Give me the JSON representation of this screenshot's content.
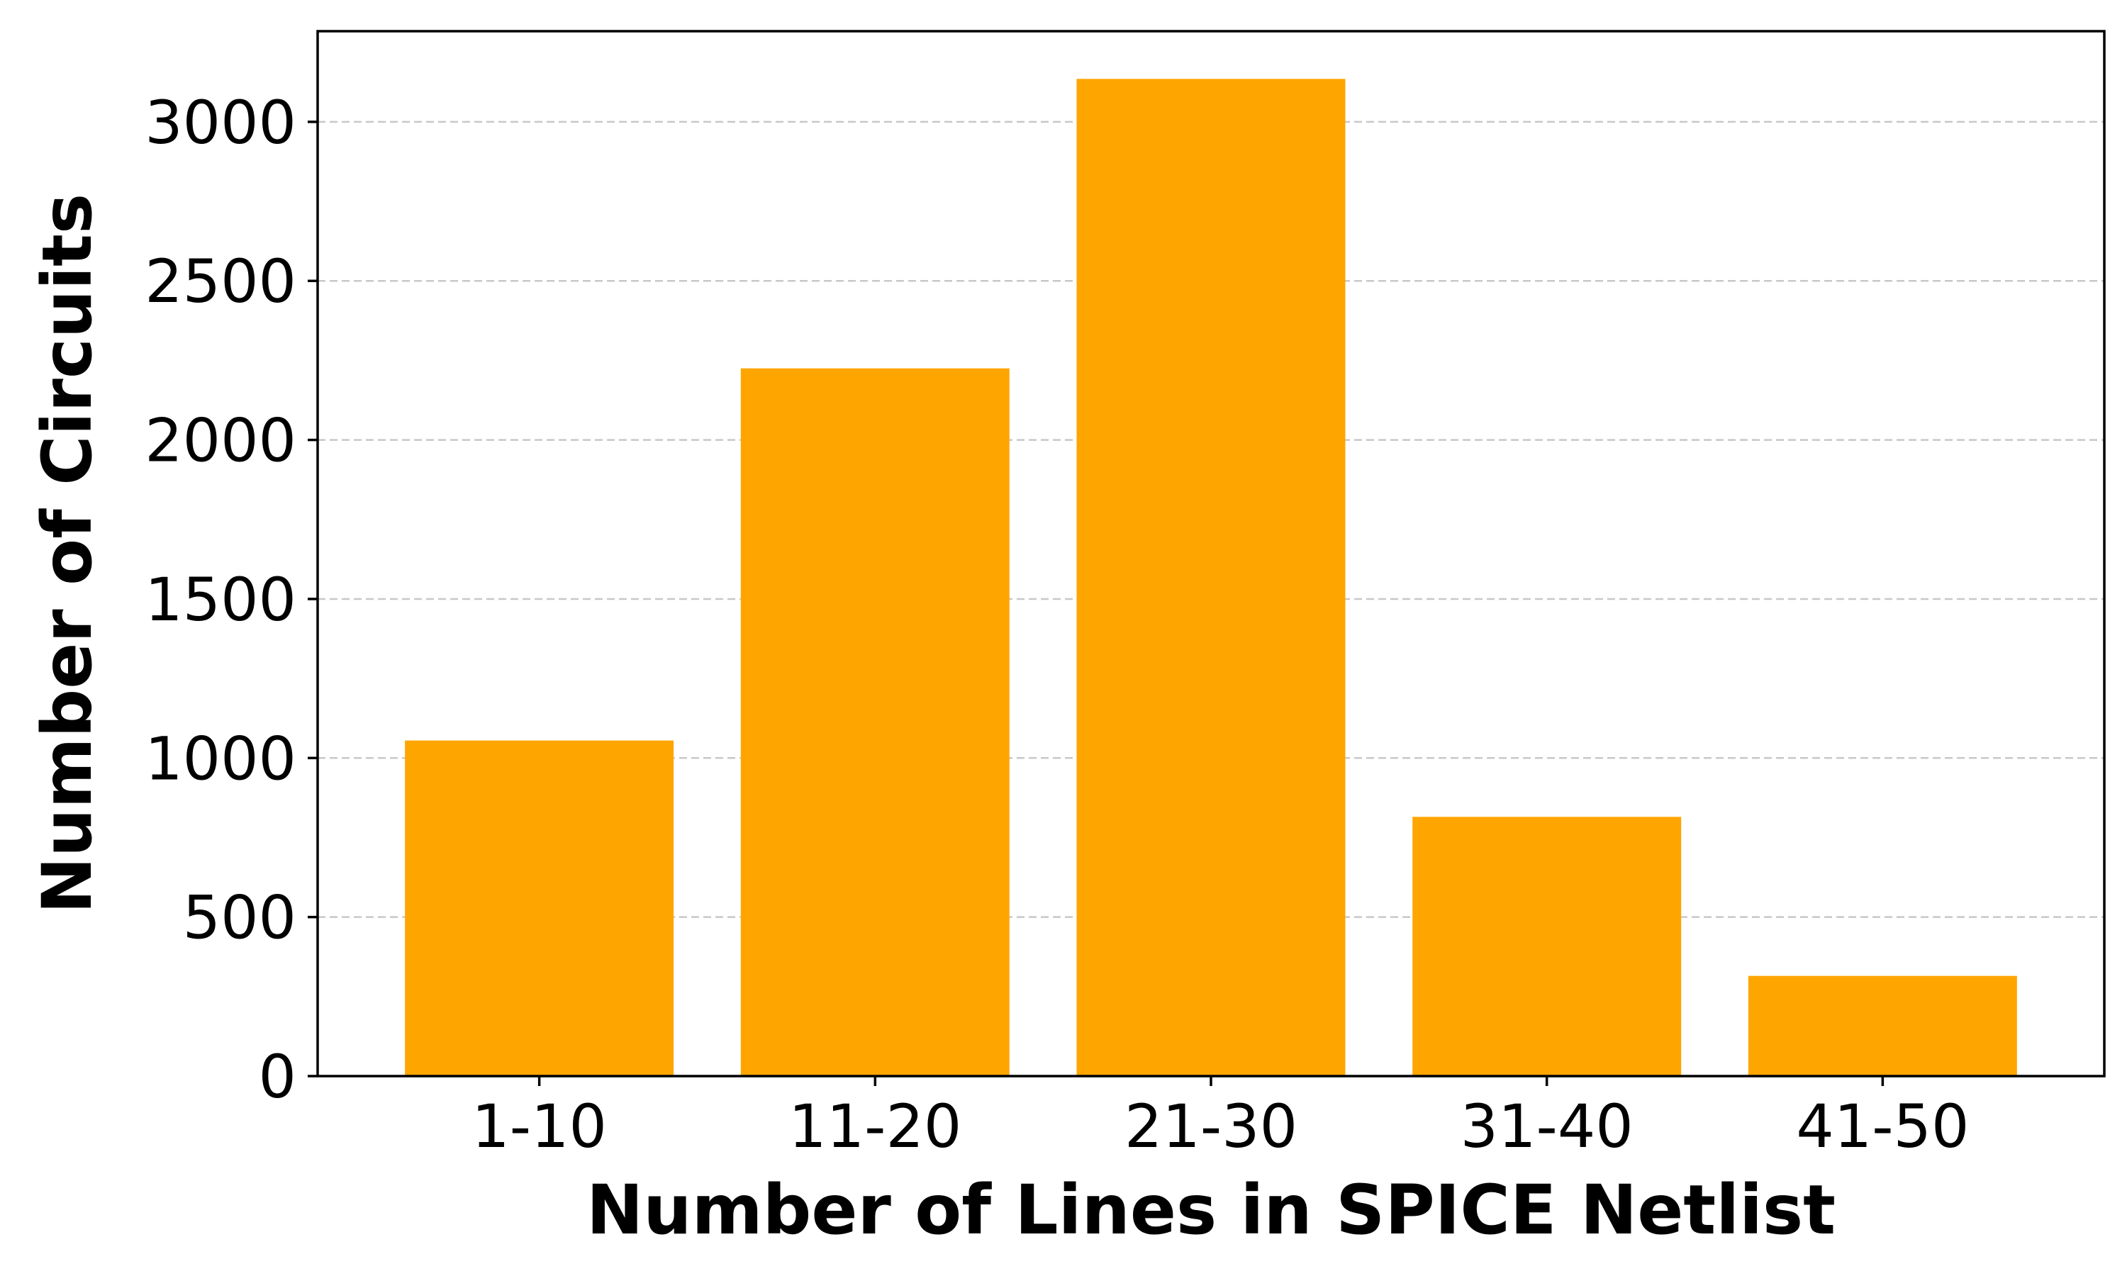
{
  "chart_data": {
    "type": "bar",
    "title": "",
    "categories": [
      "1-10",
      "11-20",
      "21-30",
      "31-40",
      "41-50"
    ],
    "values": [
      1055,
      2225,
      3135,
      815,
      315
    ],
    "xlabel": "Number of Lines in SPICE Netlist",
    "ylabel": "Number of Circuits",
    "ylim": [
      0,
      3285
    ],
    "yticks": [
      0,
      500,
      1000,
      1500,
      2000,
      2500,
      3000
    ],
    "bar_color": "#FFA500",
    "grid": "y-axis, dashed, light gray",
    "legend": "none"
  }
}
